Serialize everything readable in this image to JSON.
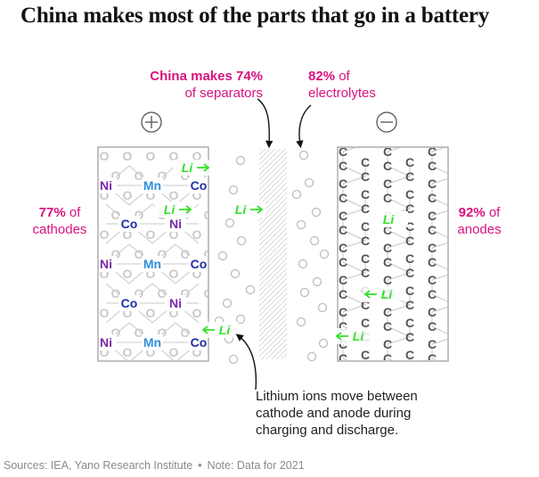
{
  "title": "China makes most of the parts that go in a battery",
  "annotations": {
    "separators": {
      "bold": "China makes 74%",
      "rest": "of separators"
    },
    "electrolytes": {
      "bold": "82%",
      "rest_inline": "of",
      "rest": "electrolytes"
    },
    "cathodes": {
      "bold": "77%",
      "rest_inline": "of",
      "rest": "cathodes"
    },
    "anodes": {
      "bold": "92%",
      "rest_inline": "of",
      "rest": "anodes"
    }
  },
  "caption": "Lithium ions move between cathode and anode during charging and discharge.",
  "footer": {
    "sources": "Sources: IEA, Yano Research Institute",
    "note": "Note: Data for 2021"
  },
  "terminals": {
    "positive": "+",
    "negative": "−"
  },
  "ion_label": "Li",
  "cathode_atoms": [
    [
      "Ni",
      "Mn",
      "Co"
    ],
    [
      "Co",
      "Ni"
    ],
    [
      "Ni",
      "Mn",
      "Co"
    ],
    [
      "Co",
      "Ni"
    ],
    [
      "Ni",
      "Mn",
      "Co"
    ]
  ],
  "anode_atom": "C",
  "oxygen_atom": "O",
  "colors": {
    "accent": "#d9127e",
    "lithium": "#35e02a",
    "nickel": "#7a2aa6",
    "manganese": "#2f8fd8",
    "cobalt": "#1e2fa3",
    "carbon": "#555555",
    "lattice": "#c8c8c8"
  }
}
